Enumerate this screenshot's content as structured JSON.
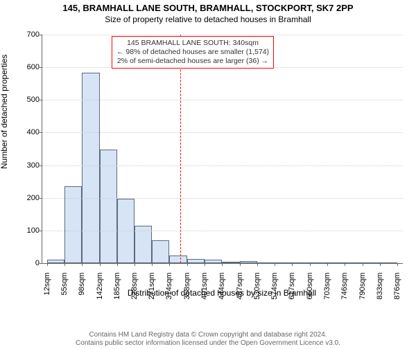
{
  "title_line1": "145, BRAMHALL LANE SOUTH, BRAMHALL, STOCKPORT, SK7 2PP",
  "title_line2": "Size of property relative to detached houses in Bramhall",
  "y_axis_label": "Number of detached properties",
  "x_axis_label": "Distribution of detached houses by size in Bramhall",
  "footer_line1": "Contains HM Land Registry data © Crown copyright and database right 2024.",
  "footer_line2": "Contains public sector information licensed under the Open Government Licence v3.0.",
  "chart": {
    "type": "histogram",
    "ylim": [
      0,
      700
    ],
    "ytick_step": 100,
    "xlim": [
      0,
      890
    ],
    "xticks": [
      12,
      55,
      98,
      142,
      185,
      228,
      271,
      314,
      358,
      401,
      444,
      487,
      530,
      574,
      617,
      660,
      703,
      746,
      790,
      833,
      876
    ],
    "xtick_unit": "sqm",
    "bars": [
      {
        "x0": 12,
        "x1": 55,
        "value": 11
      },
      {
        "x0": 55,
        "x1": 98,
        "value": 235
      },
      {
        "x0": 98,
        "x1": 142,
        "value": 583
      },
      {
        "x0": 142,
        "x1": 185,
        "value": 347
      },
      {
        "x0": 185,
        "x1": 228,
        "value": 197
      },
      {
        "x0": 228,
        "x1": 271,
        "value": 115
      },
      {
        "x0": 271,
        "x1": 314,
        "value": 71
      },
      {
        "x0": 314,
        "x1": 358,
        "value": 24
      },
      {
        "x0": 358,
        "x1": 401,
        "value": 12
      },
      {
        "x0": 401,
        "x1": 444,
        "value": 10
      },
      {
        "x0": 444,
        "x1": 487,
        "value": 4
      },
      {
        "x0": 487,
        "x1": 530,
        "value": 7
      },
      {
        "x0": 530,
        "x1": 574,
        "value": 0
      },
      {
        "x0": 574,
        "x1": 617,
        "value": 0
      },
      {
        "x0": 617,
        "x1": 660,
        "value": 0
      },
      {
        "x0": 660,
        "x1": 703,
        "value": 0
      },
      {
        "x0": 703,
        "x1": 746,
        "value": 0
      },
      {
        "x0": 746,
        "x1": 790,
        "value": 0
      },
      {
        "x0": 790,
        "x1": 833,
        "value": 0
      },
      {
        "x0": 833,
        "x1": 876,
        "value": 0
      }
    ],
    "bar_fill": "#d6e4f5",
    "bar_stroke": "#5a6b7c",
    "grid_color": "#cccccc",
    "background_color": "#ffffff",
    "reference_line": {
      "x": 340,
      "color": "#ff0000"
    },
    "annotation": {
      "line1": "145 BRAMHALL LANE SOUTH: 340sqm",
      "line2": "← 98% of detached houses are smaller (1,574)",
      "line3": "2% of semi-detached houses are larger (36) →",
      "border_color": "#ff0000",
      "text_color": "#333333"
    },
    "title_fontsize": 13,
    "label_fontsize": 12,
    "tick_fontsize": 11
  }
}
